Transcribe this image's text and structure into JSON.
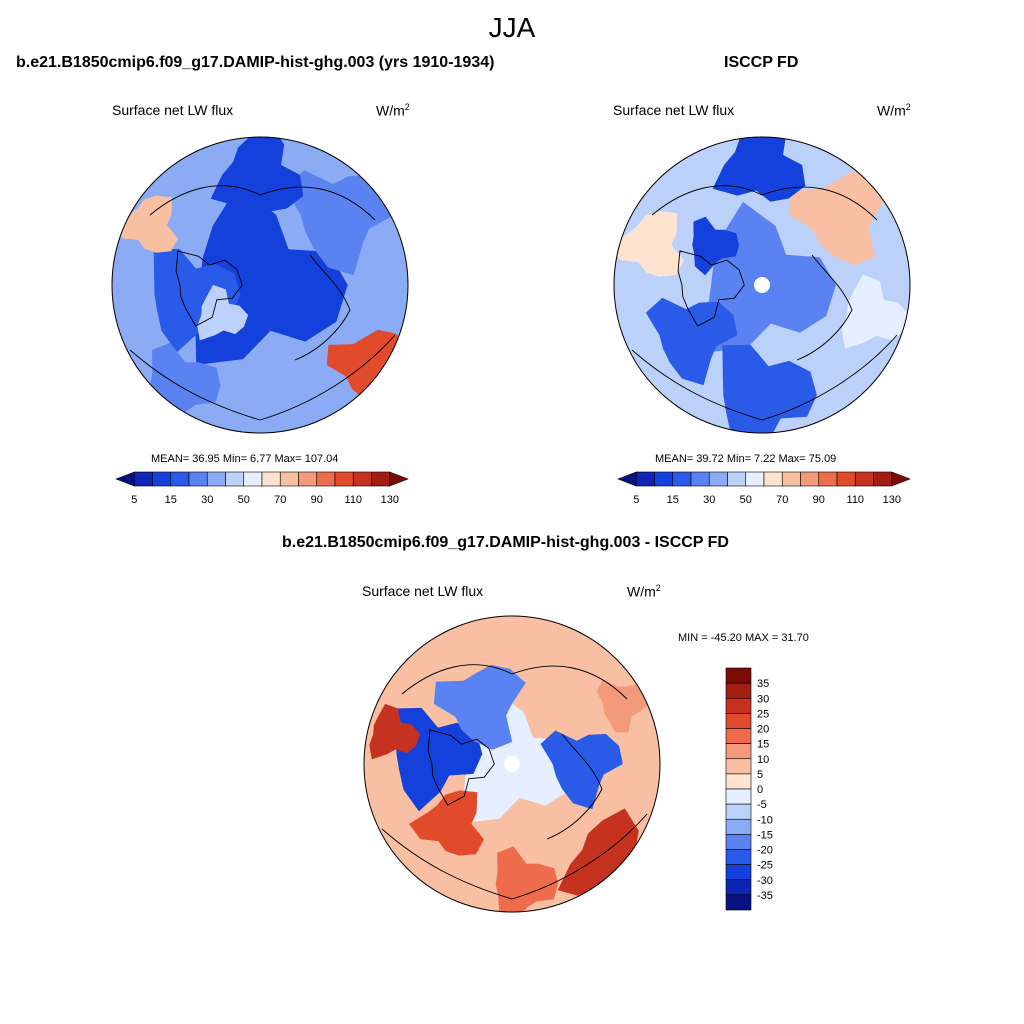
{
  "season": "JJA",
  "panels": [
    {
      "title": "b.e21.B1850cmip6.f09_g17.DAMIP-hist-ghg.003 (yrs 1910-1934)",
      "variable": "Surface net LW flux",
      "units": "W/m",
      "units_exp": "2",
      "stats": "MEAN=  36.95  Min=   6.77  Max= 107.04"
    },
    {
      "title": "ISCCP FD",
      "variable": "Surface net LW flux",
      "units": "W/m",
      "units_exp": "2",
      "stats": "MEAN=  39.72  Min=   7.22  Max=  75.09"
    },
    {
      "title": "b.e21.B1850cmip6.f09_g17.DAMIP-hist-ghg.003 - ISCCP FD",
      "variable": "Surface net LW flux",
      "units": "W/m",
      "units_exp": "2",
      "stats": "MIN = -45.20 MAX =  31.70"
    }
  ],
  "colorbar_abs": {
    "tick_labels": [
      "5",
      "15",
      "30",
      "50",
      "70",
      "90",
      "110",
      "130"
    ],
    "colors": [
      "#0a1282",
      "#0d24b4",
      "#1440dc",
      "#2a5ae8",
      "#5a82f0",
      "#8cabf5",
      "#bcd1fa",
      "#e6efff",
      "#fde3d0",
      "#f8bfa3",
      "#f39a7a",
      "#ee6c4c",
      "#e24a2c",
      "#c53220",
      "#a21e12",
      "#7a0b05"
    ]
  },
  "colorbar_diff": {
    "tick_labels": [
      "35",
      "30",
      "25",
      "20",
      "15",
      "10",
      "5",
      "0",
      "-5",
      "-10",
      "-15",
      "-20",
      "-25",
      "-30",
      "-35"
    ],
    "colors": [
      "#7a0b05",
      "#a21e12",
      "#c53220",
      "#e24a2c",
      "#ee6c4c",
      "#f39a7a",
      "#f8bfa3",
      "#fde3d0",
      "#e6efff",
      "#bcd1fa",
      "#8cabf5",
      "#5a82f0",
      "#2a5ae8",
      "#1440dc",
      "#0d24b4",
      "#0a1282"
    ]
  }
}
